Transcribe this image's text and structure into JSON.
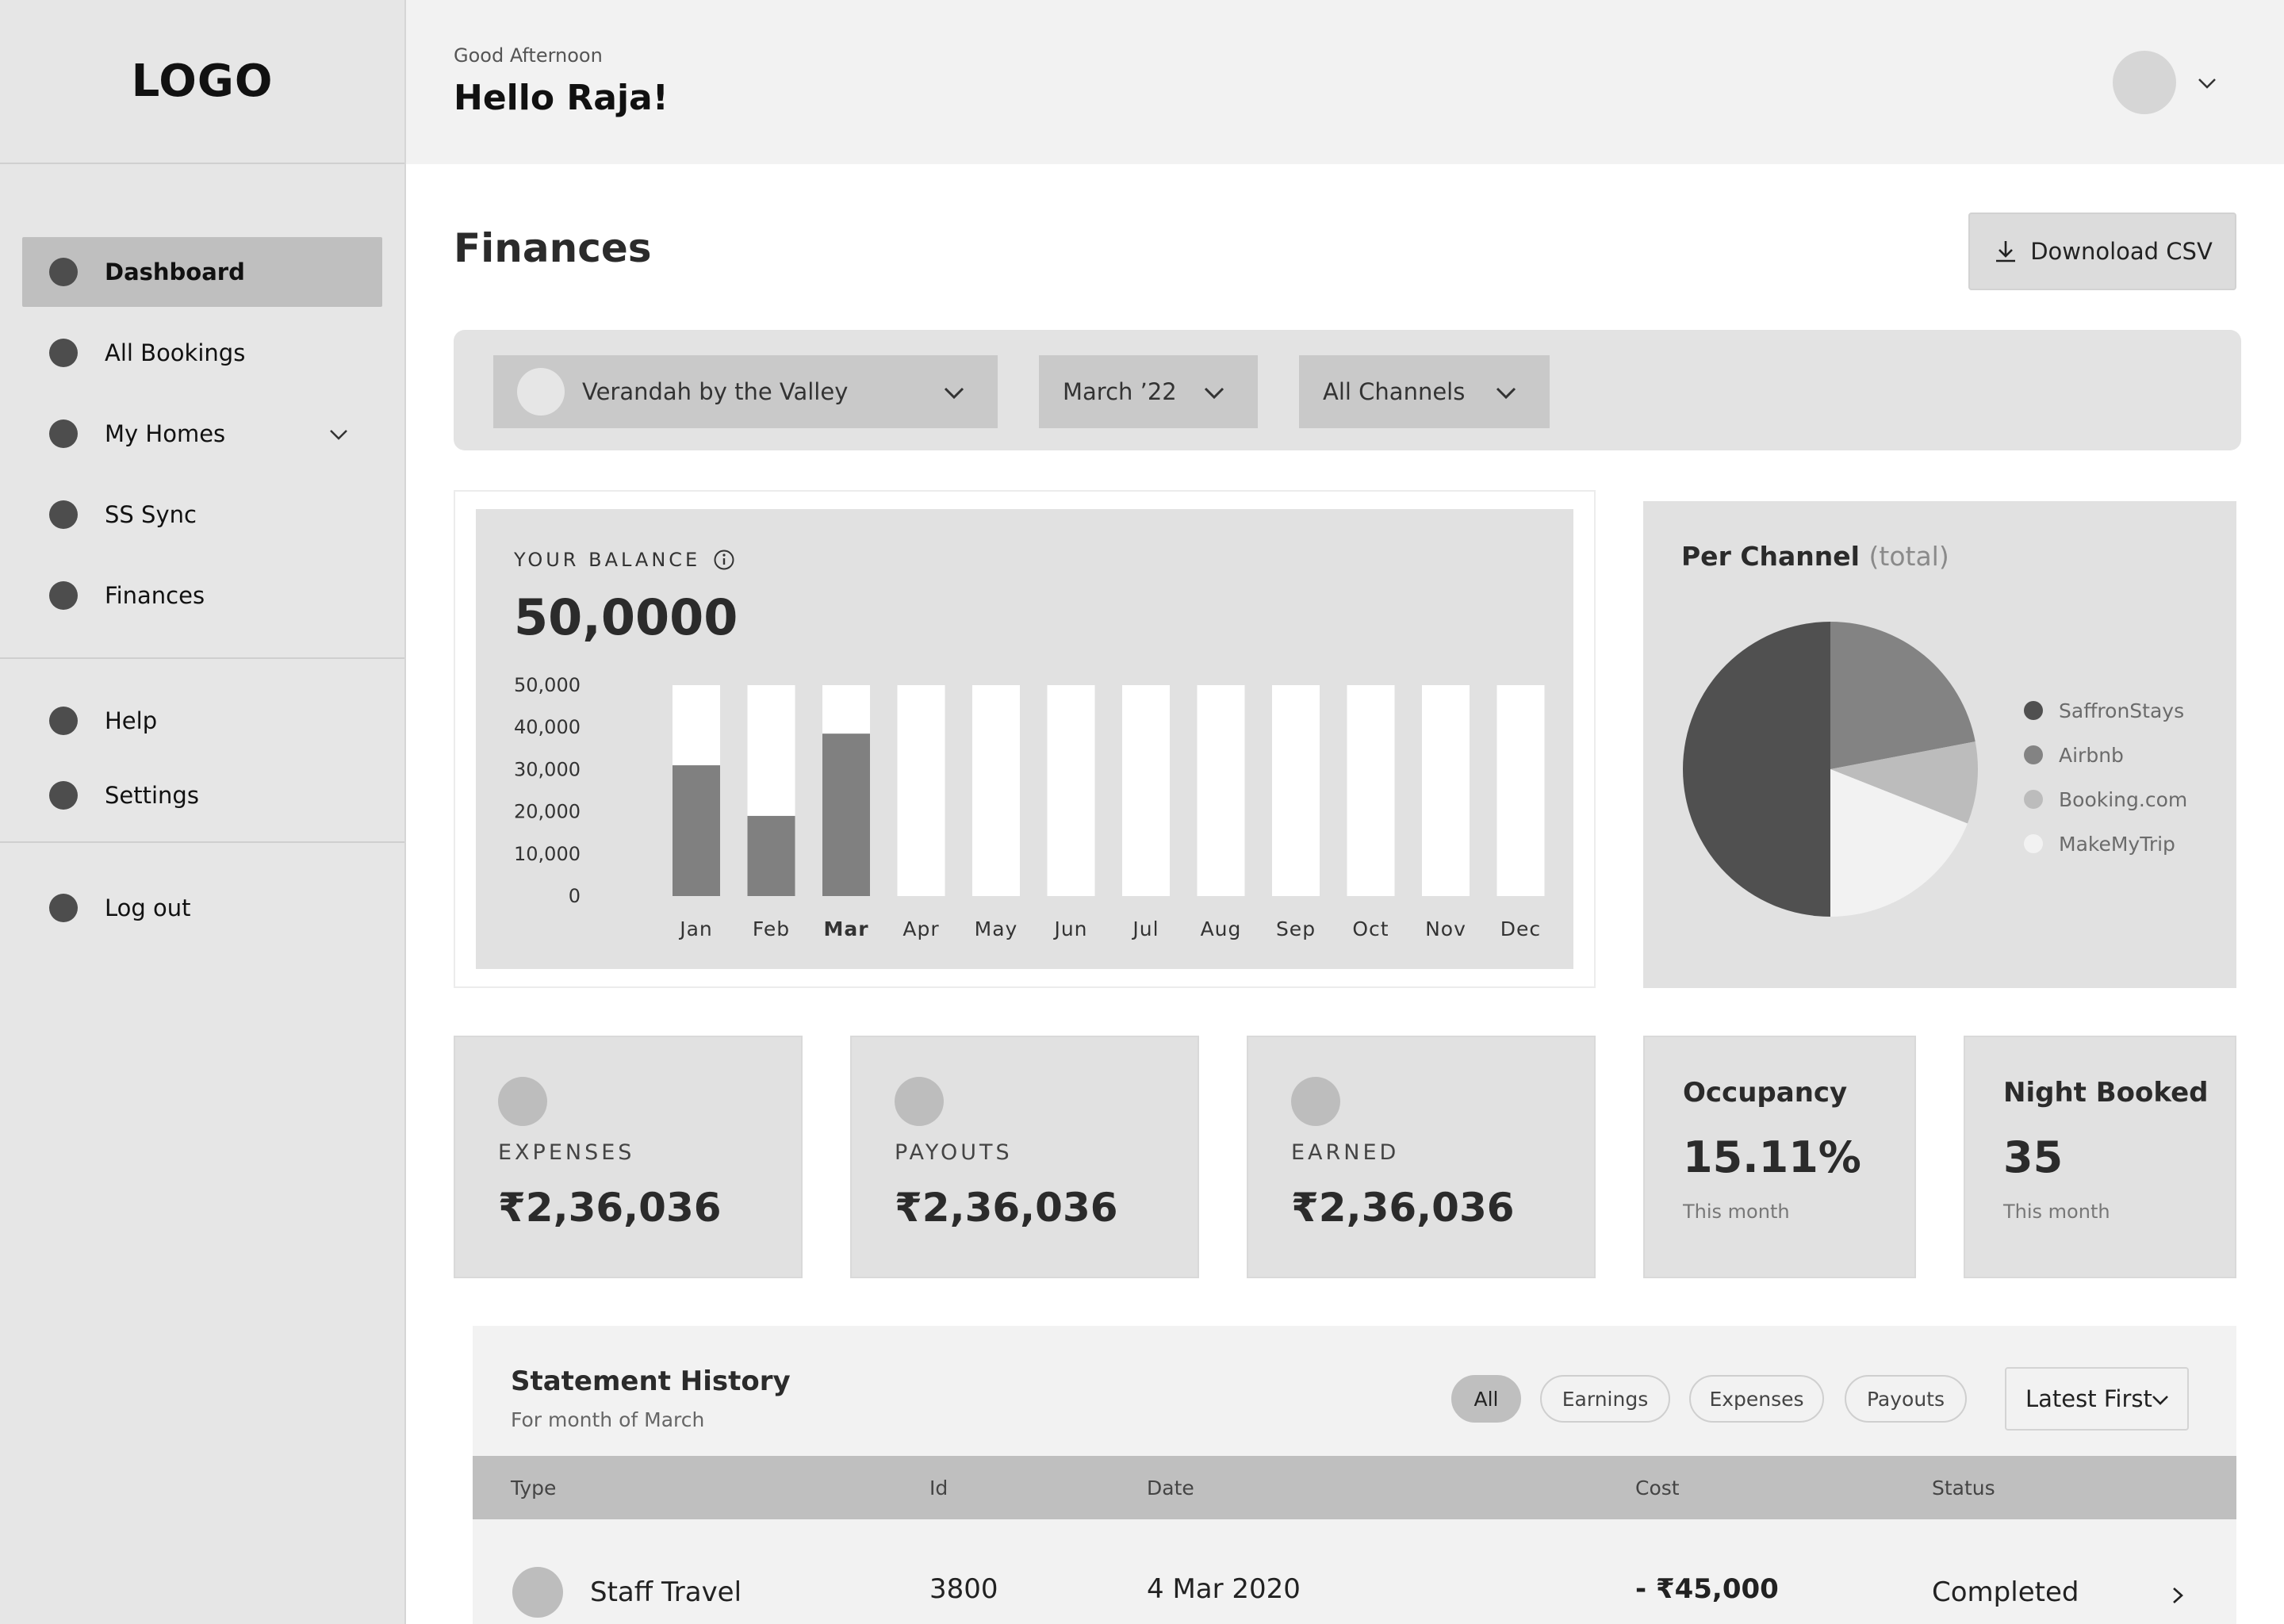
{
  "sidebar": {
    "logo": "LOGO",
    "items": [
      {
        "label": "Dashboard",
        "active": true
      },
      {
        "label": "All Bookings"
      },
      {
        "label": "My Homes",
        "has_chevron": true
      },
      {
        "label": "SS Sync"
      },
      {
        "label": "Finances"
      }
    ],
    "secondary": [
      {
        "label": "Help"
      },
      {
        "label": "Settings"
      }
    ],
    "footer": [
      {
        "label": "Log out"
      }
    ]
  },
  "header": {
    "greeting": "Good Afternoon",
    "hello": "Hello Raja!"
  },
  "main": {
    "title": "Finances",
    "download_label": "Downoload CSV",
    "filters": {
      "home": "Verandah by the Valley",
      "month": "March ’22",
      "channel": "All Channels"
    }
  },
  "balance": {
    "label": "YOUR BALANCE",
    "value": "50,0000"
  },
  "chart_data": [
    {
      "type": "bar",
      "categories": [
        "Jan",
        "Feb",
        "Mar",
        "Apr",
        "May",
        "Jun",
        "Jul",
        "Aug",
        "Sep",
        "Oct",
        "Nov",
        "Dec"
      ],
      "values": [
        31000,
        19000,
        38500,
        0,
        0,
        0,
        0,
        0,
        0,
        0,
        0,
        0
      ],
      "yticks": [
        "50,000",
        "40,000",
        "30,000",
        "20,000",
        "10,000",
        "0"
      ],
      "ylim": [
        0,
        50000
      ],
      "highlight": "Mar",
      "colors": {
        "bar": "#808080",
        "track": "#ffffff"
      }
    },
    {
      "type": "pie",
      "title": "Per Channel",
      "title_note": "(total)",
      "labels": [
        "SaffronStays",
        "Airbnb",
        "Booking.com",
        "MakeMyTrip"
      ],
      "values": [
        50,
        22,
        9,
        19
      ],
      "colors": [
        "#505050",
        "#838383",
        "#bcbcbc",
        "#f2f2f2"
      ]
    }
  ],
  "stats": [
    {
      "label": "EXPENSES",
      "value": "₹2,36,036"
    },
    {
      "label": "PAYOUTS",
      "value": "₹2,36,036"
    },
    {
      "label": "EARNED",
      "value": "₹2,36,036"
    }
  ],
  "metrics": [
    {
      "title": "Occupancy",
      "value": "15.11%",
      "sub": "This month"
    },
    {
      "title": "Night Booked",
      "value": "35",
      "sub": "This month"
    }
  ],
  "statement": {
    "title": "Statement History",
    "subtitle": "For month of March",
    "pills": [
      "All",
      "Earnings",
      "Expenses",
      "Payouts"
    ],
    "sort": "Latest First",
    "columns": [
      "Type",
      "Id",
      "Date",
      "Cost",
      "Status"
    ],
    "rows": [
      {
        "type": "Staff Travel",
        "id": "3800",
        "date": "4 Mar 2020",
        "cost": "- ₹45,000",
        "status": "Completed"
      }
    ]
  }
}
